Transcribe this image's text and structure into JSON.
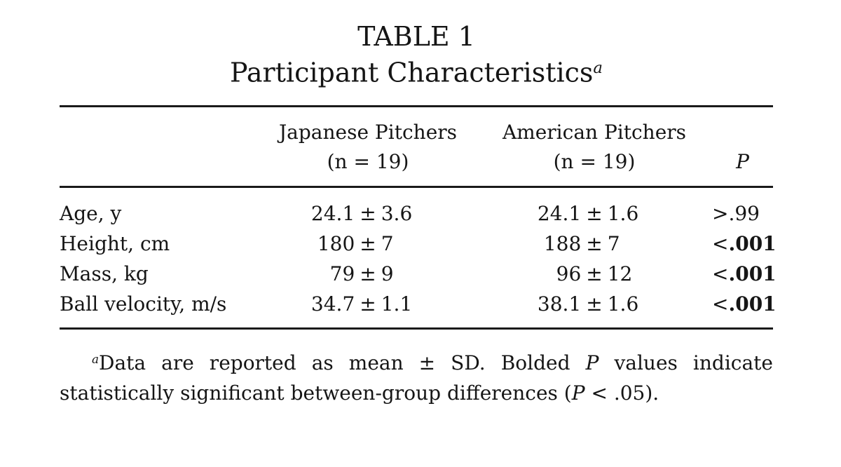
{
  "table": {
    "title_line1": "TABLE 1",
    "title_line2": "Participant Characteristics",
    "title_superscript": "a",
    "plus_minus": "±",
    "columns": {
      "group1_line1": "Japanese Pitchers",
      "group1_line2": "(n = 19)",
      "group2_line1": "American Pitchers",
      "group2_line2": "(n = 19)",
      "p_label": "P"
    },
    "rows": [
      {
        "label": "Age, y",
        "japanese_mean": "24.1",
        "japanese_sd": "3.6",
        "american_mean": "24.1",
        "american_sd": "1.6",
        "p_sign": ">",
        "p_value": ".99",
        "p_weight": "normal"
      },
      {
        "label": "Height, cm",
        "japanese_mean": "180",
        "japanese_sd": "7",
        "american_mean": "188",
        "american_sd": "7",
        "p_sign": "<",
        "p_value": ".001",
        "p_weight": "bold"
      },
      {
        "label": "Mass, kg",
        "japanese_mean": "79",
        "japanese_sd": "9",
        "american_mean": "96",
        "american_sd": "12",
        "p_sign": "<",
        "p_value": ".001",
        "p_weight": "bold"
      },
      {
        "label": "Ball velocity, m/s",
        "japanese_mean": "34.7",
        "japanese_sd": "1.1",
        "american_mean": "38.1",
        "american_sd": "1.6",
        "p_sign": "<",
        "p_value": ".001",
        "p_weight": "bold"
      }
    ],
    "footnote": {
      "marker": "a",
      "part1": "Data are reported as mean ± SD. Bolded ",
      "italic1": "P",
      "part2": " values indicate statistically significant between-group differences (",
      "italic2": "P",
      "part3": " < .05)."
    }
  },
  "colors": {
    "background": "#ffffff",
    "text": "#151515",
    "rule": "#1a1a1a"
  }
}
